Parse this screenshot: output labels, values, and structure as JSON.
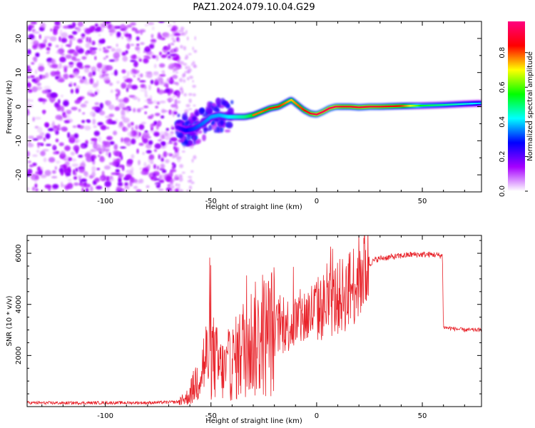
{
  "figure": {
    "title": "PAZ1.2024.079.10.04.G29"
  },
  "chart_data": [
    {
      "type": "heatmap",
      "title": "PAZ1.2024.079.10.04.G29",
      "xlabel": "Height of straight line (km)",
      "ylabel": "Frequency (Hz)",
      "xlim": [
        -137,
        78
      ],
      "ylim": [
        -25,
        25
      ],
      "x_ticks": [
        -100,
        -50,
        0,
        50
      ],
      "y_ticks": [
        -20,
        -10,
        0,
        10,
        20
      ],
      "colorbar": {
        "label": "Normalized spectral amplitude",
        "range": [
          0,
          0.98
        ],
        "ticks": [
          "0.0",
          "0.2",
          "0.4",
          "0.6",
          "0.8"
        ],
        "tick_values": [
          0,
          0.2,
          0.4,
          0.6,
          0.8
        ],
        "colormap": [
          "#ffffff",
          "#a600ff",
          "#0000ff",
          "#00ffff",
          "#00ff00",
          "#ffff00",
          "#ff0000",
          "#ff0080"
        ]
      },
      "ridge": {
        "x": [
          -66,
          -62,
          -58,
          -54,
          -50,
          -46,
          -42,
          -38,
          -34,
          -30,
          -26,
          -22,
          -18,
          -15,
          -12,
          -9,
          -6,
          -3,
          0,
          3,
          6,
          9,
          12,
          16,
          20,
          25,
          30,
          40,
          50,
          60,
          70,
          78
        ],
        "y": [
          -6,
          -7,
          -6.5,
          -5,
          -3,
          -2.5,
          -3,
          -3,
          -3,
          -2.5,
          -1.5,
          -0.5,
          0,
          1,
          2,
          0.5,
          -1,
          -2,
          -2.3,
          -1.5,
          -0.5,
          0,
          0,
          0,
          -0.2,
          0,
          0,
          0.2,
          0.3,
          0.5,
          0.8,
          1
        ],
        "amplitude": [
          0.3,
          0.4,
          0.45,
          0.5,
          0.55,
          0.55,
          0.6,
          0.65,
          0.7,
          0.8,
          0.8,
          0.85,
          0.85,
          0.8,
          0.75,
          0.8,
          0.85,
          0.9,
          0.95,
          0.95,
          0.95,
          0.95,
          0.9,
          0.9,
          0.92,
          0.92,
          0.9,
          0.85,
          0.55,
          0.5,
          0.45,
          0.4
        ]
      },
      "noise_region_xlim": [
        -137,
        -65
      ]
    },
    {
      "type": "line",
      "xlabel": "Height of straight line (km)",
      "ylabel": "SNR (10 * v/v)",
      "xlim": [
        -137,
        78
      ],
      "ylim": [
        0,
        6700
      ],
      "x_ticks": [
        -100,
        -50,
        0,
        50
      ],
      "y_ticks": [
        2000,
        4000,
        6000
      ],
      "series": [
        {
          "color": "#e8232a",
          "x": [
            -137,
            -120,
            -100,
            -80,
            -66,
            -62,
            -60,
            -58,
            -56,
            -54,
            -52,
            -50,
            -48,
            -46,
            -44,
            -42,
            -40,
            -38,
            -36,
            -34,
            -32,
            -30,
            -28,
            -26,
            -24,
            -22,
            -20,
            -18,
            -16,
            -14,
            -12,
            -10,
            -8,
            -6,
            -4,
            -2,
            0,
            2,
            4,
            6,
            8,
            10,
            12,
            14,
            16,
            18,
            20,
            22,
            24,
            26,
            28,
            30,
            35,
            40,
            45,
            50,
            55,
            59.5,
            60,
            65,
            70,
            78
          ],
          "y": [
            150,
            140,
            150,
            150,
            180,
            300,
            500,
            800,
            1200,
            1600,
            1900,
            2100,
            1800,
            1500,
            1400,
            1500,
            1700,
            1900,
            2100,
            2400,
            2500,
            2600,
            2600,
            2700,
            2800,
            2900,
            3000,
            3100,
            3100,
            3200,
            3250,
            3300,
            3400,
            3500,
            3600,
            3700,
            3800,
            3850,
            3950,
            4050,
            4150,
            4250,
            4350,
            4450,
            4650,
            4850,
            5100,
            5350,
            5500,
            5650,
            5750,
            5800,
            5850,
            5900,
            5950,
            5950,
            5950,
            5900,
            3100,
            3050,
            3000,
            3000
          ]
        }
      ]
    }
  ]
}
